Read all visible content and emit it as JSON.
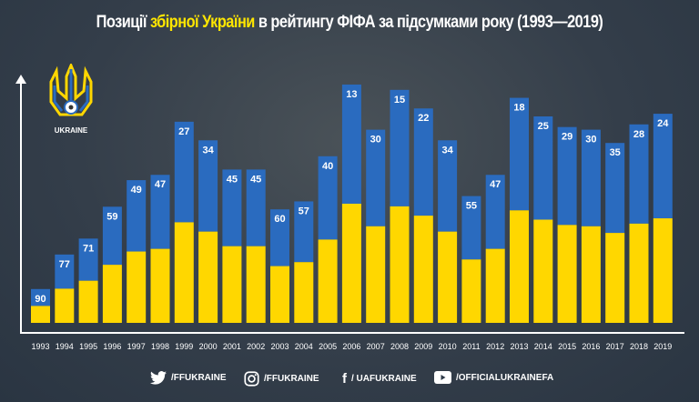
{
  "title": {
    "part1": "Позиції",
    "highlight": "збірної України",
    "part2": "в рейтингу ФІФА за підсумками року (1993—2019)"
  },
  "logo": {
    "text": "UKRAINE"
  },
  "colors": {
    "background": "#2f3b49",
    "bar_top": "#2a6bbf",
    "bar_bottom": "#ffd700",
    "highlight": "#ffe600"
  },
  "chart_data": {
    "type": "bar",
    "title": "Позиції збірної України в рейтингу ФІФА за підсумками року (1993—2019)",
    "categories": [
      "1993",
      "1994",
      "1995",
      "1996",
      "1997",
      "1998",
      "1999",
      "2000",
      "2001",
      "2002",
      "2003",
      "2004",
      "2005",
      "2006",
      "2007",
      "2008",
      "2009",
      "2010",
      "2011",
      "2012",
      "2013",
      "2014",
      "2015",
      "2016",
      "2017",
      "2018",
      "2019"
    ],
    "values": [
      90,
      77,
      71,
      59,
      49,
      47,
      27,
      34,
      45,
      45,
      60,
      57,
      40,
      13,
      30,
      15,
      22,
      34,
      55,
      47,
      18,
      25,
      29,
      30,
      35,
      28,
      24
    ],
    "note_scale": "inverted rank (lower rank = taller bar)",
    "grid": false,
    "data_labels": true
  },
  "footer": [
    {
      "icon": "twitter-icon",
      "label": "/FFUKRAINE"
    },
    {
      "icon": "instagram-icon",
      "label": "/FFUKRAINE"
    },
    {
      "icon": "facebook-icon",
      "label": "/ UAFUKRAINE"
    },
    {
      "icon": "youtube-icon",
      "label": "/OFFICIALUKRAINEFA"
    }
  ]
}
